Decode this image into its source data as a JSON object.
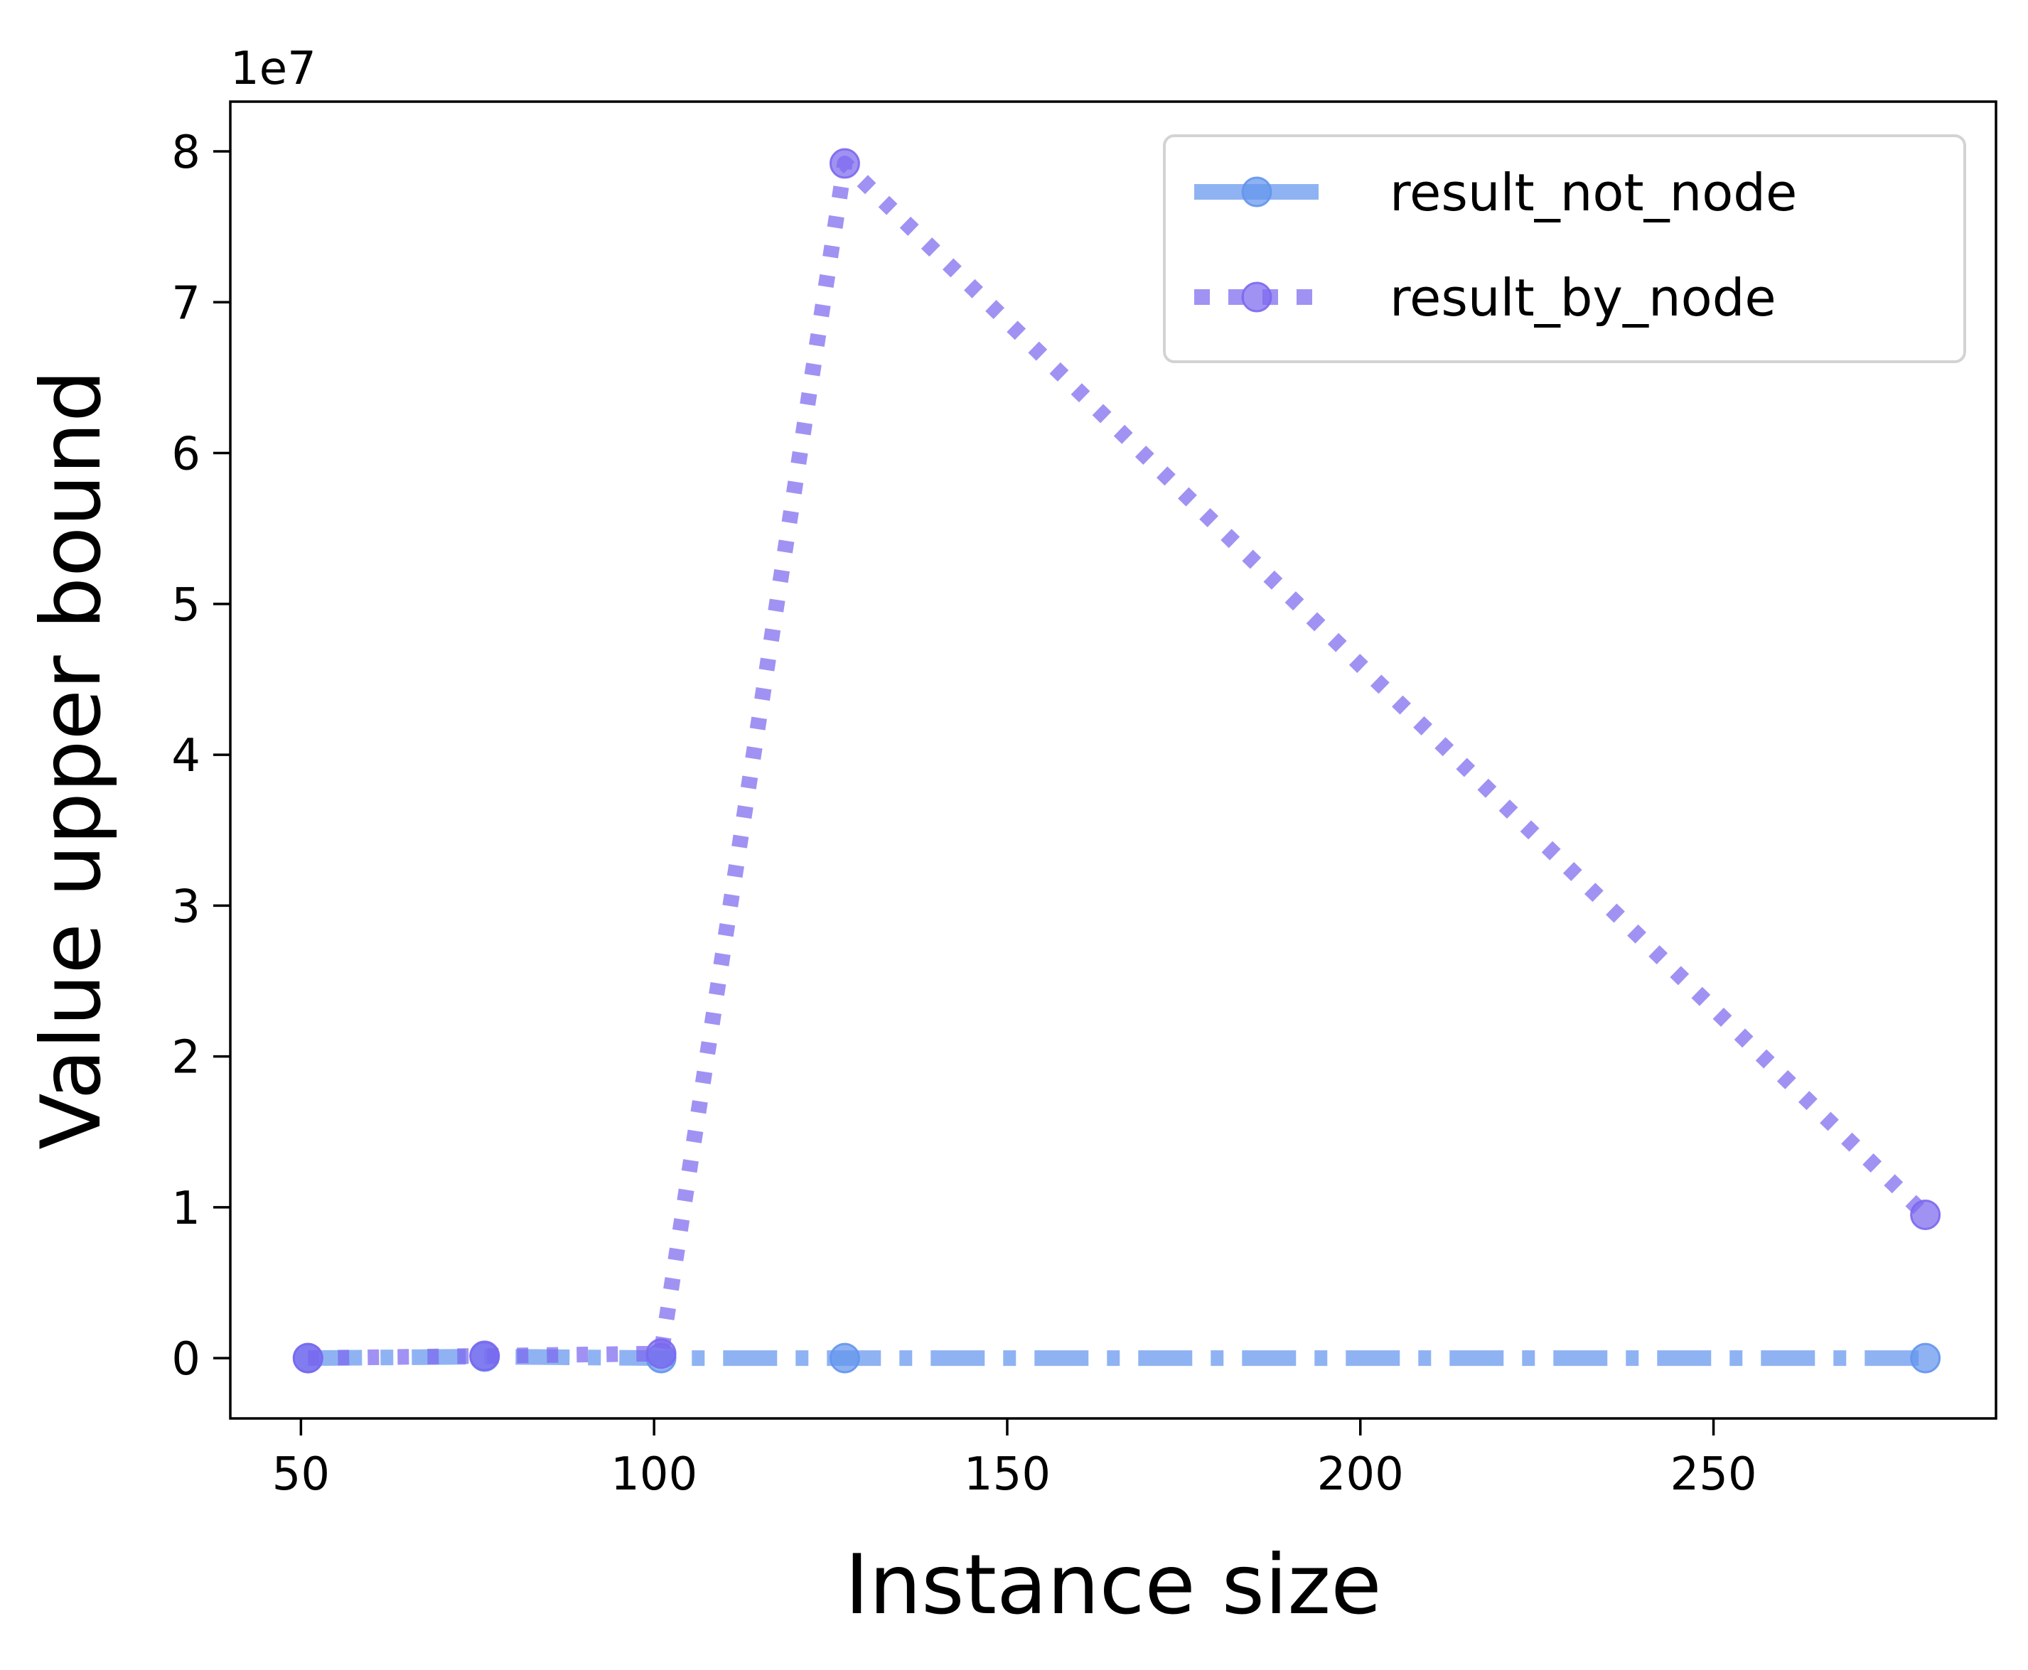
{
  "chart_data": {
    "type": "line",
    "title": "",
    "xlabel": "Instance size",
    "ylabel": "Value upper bound",
    "y_offset_label": "1e7",
    "xlim": [
      40,
      290
    ],
    "ylim": [
      -4000000,
      83300000
    ],
    "y_scale_factor": 10000000,
    "xticks": [
      50,
      100,
      150,
      200,
      250
    ],
    "xtick_labels": [
      "50",
      "100",
      "150",
      "200",
      "250"
    ],
    "yticks": [
      0,
      10000000,
      20000000,
      30000000,
      40000000,
      50000000,
      60000000,
      70000000,
      80000000
    ],
    "ytick_labels": [
      "0",
      "1",
      "2",
      "3",
      "4",
      "5",
      "6",
      "7",
      "8"
    ],
    "grid": false,
    "legend_position": "top-right",
    "series": [
      {
        "name": "result_not_node",
        "color": "#6495ED",
        "line_style": "dash-dot",
        "marker": "circle",
        "x": [
          51,
          76,
          101,
          127,
          280
        ],
        "y": [
          0,
          100000,
          0,
          0,
          0
        ]
      },
      {
        "name": "result_by_node",
        "color": "#7B68EE",
        "line_style": "dotted",
        "marker": "circle",
        "x": [
          51,
          76,
          101,
          127,
          280
        ],
        "y": [
          0,
          150000,
          300000,
          79200000,
          9500000
        ]
      }
    ]
  }
}
